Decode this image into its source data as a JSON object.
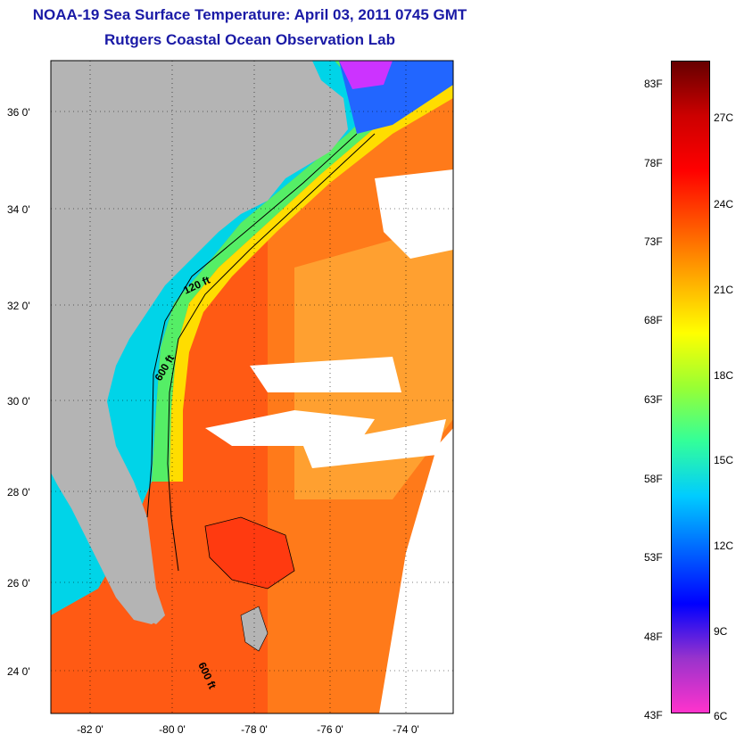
{
  "title": "NOAA-19 Sea Surface Temperature:  April 03, 2011 0745 GMT",
  "subtitle": "Rutgers Coastal Ocean Observation Lab",
  "latitude_labels": [
    "36 0'",
    "34 0'",
    "32 0'",
    "30 0'",
    "28 0'",
    "26 0'",
    "24 0'"
  ],
  "longitude_labels": [
    "-82 0'",
    "-80 0'",
    "-78 0'",
    "-76 0'",
    "-74 0'"
  ],
  "depth_contours": [
    "120 ft",
    "600 ft",
    "600 ft"
  ],
  "colorbar": {
    "fahrenheit_labels": [
      "83F",
      "78F",
      "73F",
      "68F",
      "63F",
      "58F",
      "53F",
      "48F",
      "43F"
    ],
    "celsius_labels": [
      "27C",
      "24C",
      "21C",
      "18C",
      "15C",
      "12C",
      "9C",
      "6C"
    ],
    "colors": [
      "#ff33cc",
      "#9933cc",
      "#0000ff",
      "#0066ff",
      "#00ccff",
      "#33ff99",
      "#99ff33",
      "#ffff00",
      "#ffaa00",
      "#ff5500",
      "#ff0000",
      "#cc0000",
      "#660000"
    ]
  },
  "colors": {
    "land": "#b4b4b4",
    "cloud": "#ffffff",
    "title": "#1a1aa6"
  }
}
